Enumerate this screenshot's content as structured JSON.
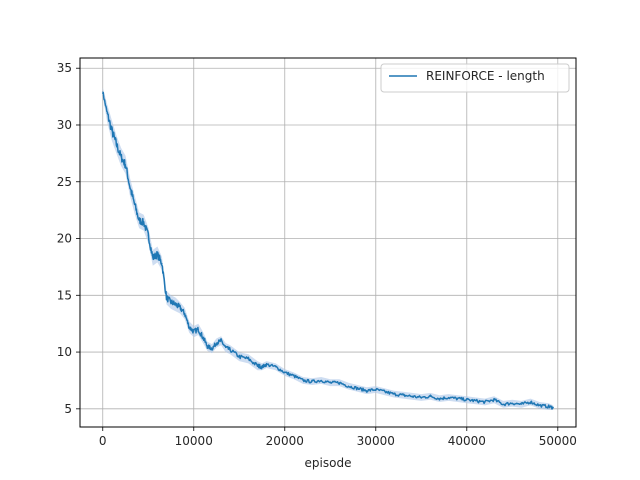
{
  "chart_data": {
    "type": "line",
    "title": "",
    "xlabel": "episode",
    "ylabel": "",
    "xlim": [
      -2500,
      52000
    ],
    "ylim": [
      3.4,
      35.9
    ],
    "xticks": [
      0,
      10000,
      20000,
      30000,
      40000,
      50000
    ],
    "xtick_labels": [
      "0",
      "10000",
      "20000",
      "30000",
      "40000",
      "50000"
    ],
    "yticks": [
      5,
      10,
      15,
      20,
      25,
      30,
      35
    ],
    "ytick_labels": [
      "5",
      "10",
      "15",
      "20",
      "25",
      "30",
      "35"
    ],
    "grid": true,
    "legend_position": "top-right",
    "series": [
      {
        "name": "REINFORCE - length",
        "color": "#1f77b4",
        "band_color": "#aec7e8",
        "x": [
          0,
          500,
          1000,
          1500,
          2000,
          2500,
          3000,
          3500,
          4000,
          4500,
          5000,
          5500,
          6000,
          6500,
          7000,
          7500,
          8000,
          8500,
          9000,
          9500,
          10000,
          10500,
          11000,
          11500,
          12000,
          12500,
          13000,
          13500,
          14000,
          15000,
          16000,
          17000,
          17500,
          18000,
          19000,
          20000,
          21000,
          22000,
          23000,
          24000,
          25000,
          26000,
          27000,
          28000,
          29000,
          30000,
          31000,
          32000,
          33000,
          34000,
          35000,
          36000,
          37000,
          38000,
          39000,
          40000,
          41000,
          42000,
          43000,
          44000,
          45000,
          46000,
          47000,
          48000,
          49000,
          49500
        ],
        "values": [
          32.9,
          31.0,
          29.5,
          28.3,
          27.2,
          26.5,
          24.5,
          23.0,
          21.6,
          21.4,
          20.3,
          18.3,
          18.6,
          17.8,
          14.8,
          14.4,
          14.2,
          13.9,
          13.4,
          12.2,
          11.8,
          12.0,
          11.3,
          10.5,
          10.3,
          10.8,
          11.0,
          10.4,
          10.2,
          9.6,
          9.4,
          8.8,
          8.7,
          8.9,
          8.7,
          8.2,
          7.9,
          7.5,
          7.4,
          7.5,
          7.3,
          7.3,
          7.0,
          6.8,
          6.6,
          6.7,
          6.5,
          6.3,
          6.2,
          6.1,
          6.0,
          6.1,
          5.9,
          6.0,
          5.9,
          5.8,
          5.7,
          5.6,
          5.8,
          5.4,
          5.5,
          5.4,
          5.6,
          5.3,
          5.2,
          5.1
        ],
        "band_halfwidth": [
          0.4,
          0.8,
          0.9,
          0.8,
          0.8,
          0.8,
          0.8,
          0.8,
          0.7,
          0.7,
          0.7,
          0.7,
          0.7,
          0.6,
          0.6,
          0.6,
          0.6,
          0.5,
          0.5,
          0.5,
          0.5,
          0.5,
          0.5,
          0.4,
          0.4,
          0.4,
          0.4,
          0.4,
          0.4,
          0.4,
          0.4,
          0.4,
          0.3,
          0.3,
          0.3,
          0.3,
          0.3,
          0.3,
          0.3,
          0.3,
          0.3,
          0.3,
          0.3,
          0.3,
          0.3,
          0.3,
          0.3,
          0.3,
          0.3,
          0.3,
          0.3,
          0.3,
          0.3,
          0.3,
          0.3,
          0.3,
          0.3,
          0.3,
          0.3,
          0.3,
          0.3,
          0.3,
          0.3,
          0.3,
          0.3,
          0.2
        ]
      }
    ]
  }
}
